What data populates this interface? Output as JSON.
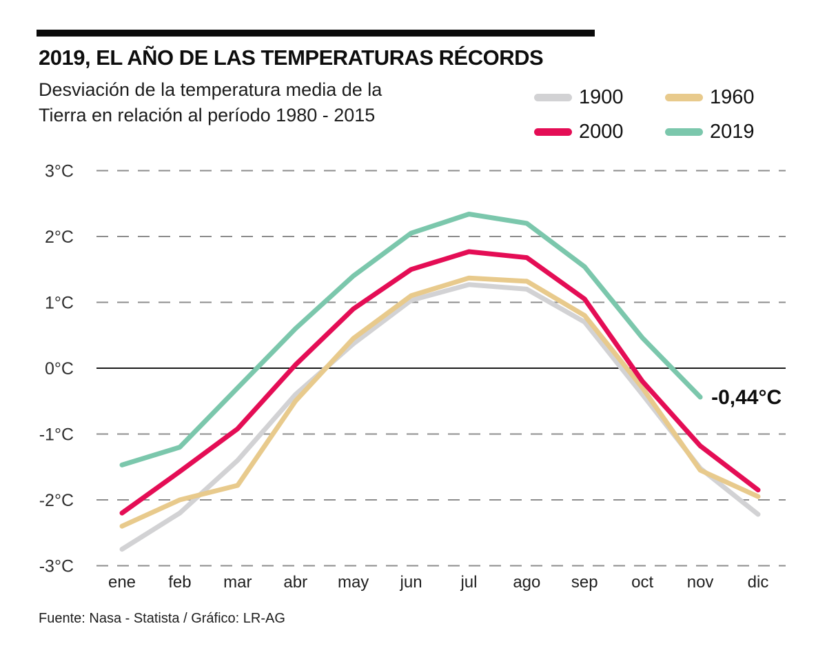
{
  "header": {
    "title": "2019, EL AÑO DE LAS TEMPERATURAS RÉCORDS",
    "subtitle_line1": "Desviación de la temperatura media de la",
    "subtitle_line2": "Tierra en relación al período 1980 - 2015"
  },
  "legend": {
    "items": [
      {
        "label": "1900",
        "color": "#d2d2d4"
      },
      {
        "label": "1960",
        "color": "#e8ca8c"
      },
      {
        "label": "2000",
        "color": "#e40d55"
      },
      {
        "label": "2019",
        "color": "#7bc7ac"
      }
    ]
  },
  "footer": {
    "source": "Fuente: Nasa - Statista / Gráfico: LR-AG"
  },
  "chart_data": {
    "type": "line",
    "title": "2019, EL AÑO DE LAS TEMPERATURAS RÉCORDS",
    "categories": [
      "ene",
      "feb",
      "mar",
      "abr",
      "may",
      "jun",
      "jul",
      "ago",
      "sep",
      "oct",
      "nov",
      "dic"
    ],
    "y_ticks": [
      {
        "label": "3°C",
        "value": 3
      },
      {
        "label": "2°C",
        "value": 2
      },
      {
        "label": "1°C",
        "value": 1
      },
      {
        "label": "0°C",
        "value": 0
      },
      {
        "label": "-1°C",
        "value": -1
      },
      {
        "label": "-2°C",
        "value": -2
      },
      {
        "label": "-3°C",
        "value": -3
      }
    ],
    "ylim": [
      -3.3,
      3.3
    ],
    "grid": "horizontal-dashed",
    "zero_baseline_solid": true,
    "legend_position": "top-right",
    "annotation": {
      "text": "-0,44°C",
      "month": "nov",
      "series": "2019",
      "value": -0.44
    },
    "series": [
      {
        "name": "1900",
        "color": "#d2d2d4",
        "values": [
          -2.75,
          -2.2,
          -1.4,
          -0.4,
          0.37,
          1.03,
          1.27,
          1.2,
          0.7,
          -0.4,
          -1.52,
          -2.22
        ]
      },
      {
        "name": "1960",
        "color": "#e8ca8c",
        "values": [
          -2.4,
          -2.0,
          -1.78,
          -0.5,
          0.45,
          1.1,
          1.37,
          1.32,
          0.8,
          -0.3,
          -1.55,
          -1.95
        ]
      },
      {
        "name": "2000",
        "color": "#e40d55",
        "values": [
          -2.2,
          -1.57,
          -0.92,
          0.05,
          0.9,
          1.5,
          1.77,
          1.68,
          1.05,
          -0.2,
          -1.18,
          -1.85
        ]
      },
      {
        "name": "2019",
        "color": "#7bc7ac",
        "values": [
          -1.47,
          -1.2,
          -0.3,
          0.6,
          1.4,
          2.05,
          2.34,
          2.2,
          1.54,
          0.46,
          -0.44,
          null
        ]
      }
    ]
  }
}
